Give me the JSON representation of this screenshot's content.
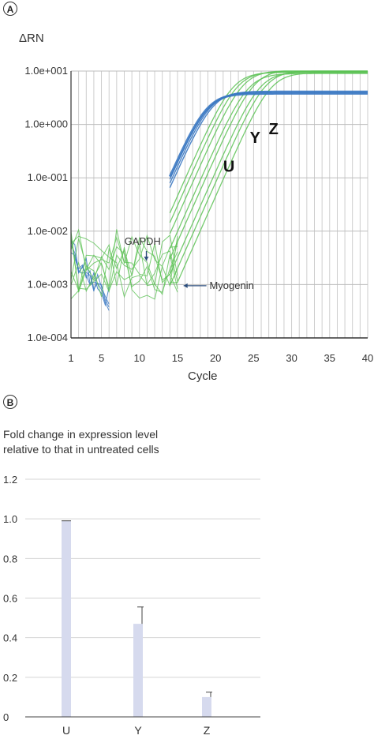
{
  "panel_a": {
    "badge": "A",
    "ylabel": "ΔRN",
    "xlabel": "Cycle"
  },
  "panel_b": {
    "badge": "B",
    "ylabel_line1": "Fold change in expression level",
    "ylabel_line2": "relative to that in untreated cells"
  },
  "chart_data": [
    {
      "type": "line",
      "ylabel": "ΔRN",
      "xlabel": "Cycle",
      "yscale": "log",
      "xlim": [
        1,
        40
      ],
      "ylim": [
        0.0001,
        10
      ],
      "x_ticks": [
        1,
        5,
        10,
        15,
        20,
        25,
        30,
        35,
        40
      ],
      "y_ticks": [
        0.0001,
        0.001,
        0.01,
        0.1,
        1,
        10
      ],
      "y_tick_labels": [
        "1.0e-004",
        "1.0e-003",
        "1.0e-002",
        "1.0e-001",
        "1.0e+000",
        "1.0e+001"
      ],
      "grid": true,
      "series_colors": [
        "#3a78c2",
        "#5cc255"
      ],
      "annotations": [
        {
          "text": "GAPDH",
          "x": 10.5,
          "y": 0.0052
        },
        {
          "text": "Myogenin",
          "x": 15.5,
          "y": 0.001
        },
        {
          "text": "U",
          "x": 21,
          "y": 0.13
        },
        {
          "text": "Y",
          "x": 24.5,
          "y": 0.45
        },
        {
          "text": "Z",
          "x": 27,
          "y": 0.65
        }
      ],
      "blue_curves": [
        {
          "ct": 18.8,
          "plateau": 3.8,
          "baseline": 0.004
        },
        {
          "ct": 19.0,
          "plateau": 3.9,
          "baseline": 0.003
        },
        {
          "ct": 19.3,
          "plateau": 4.1,
          "baseline": 0.0035
        },
        {
          "ct": 19.6,
          "plateau": 4.2,
          "baseline": 0.0025
        }
      ],
      "green_curves": [
        {
          "ct": 22.2,
          "plateau": 9.5,
          "baseline": 0.0025
        },
        {
          "ct": 22.8,
          "plateau": 9.8,
          "baseline": 0.003
        },
        {
          "ct": 23.5,
          "plateau": 10.2,
          "baseline": 0.0022
        },
        {
          "ct": 24.2,
          "plateau": 9.0,
          "baseline": 0.0028
        },
        {
          "ct": 25.0,
          "plateau": 10.5,
          "baseline": 0.002
        },
        {
          "ct": 25.8,
          "plateau": 9.6,
          "baseline": 0.0026
        },
        {
          "ct": 26.5,
          "plateau": 10.1,
          "baseline": 0.0023
        },
        {
          "ct": 27.2,
          "plateau": 9.3,
          "baseline": 0.0027
        }
      ]
    },
    {
      "type": "bar",
      "categories": [
        "U",
        "Y",
        "Z"
      ],
      "values": [
        0.99,
        0.47,
        0.1
      ],
      "errors": [
        0.0,
        0.085,
        0.025
      ],
      "ylim": [
        0,
        1.2
      ],
      "y_ticks": [
        0,
        0.2,
        0.4,
        0.6,
        0.8,
        1.0,
        1.2
      ],
      "y_tick_labels": [
        "0",
        "0.2",
        "0.4",
        "0.6",
        "0.8",
        "1.0",
        "1.2"
      ],
      "grid": true,
      "bar_color": "#d6daee"
    }
  ]
}
